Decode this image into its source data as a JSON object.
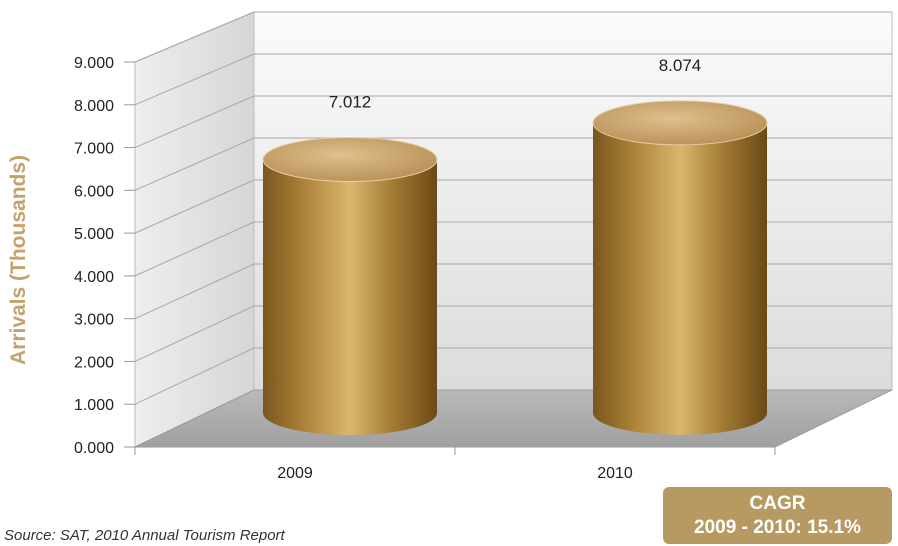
{
  "colors": {
    "accent": "#c4a26c",
    "bar_dark": "#7a561d",
    "bar_mid": "#b0863c",
    "bar_light": "#d9b66e",
    "bar_top": "#c8a571",
    "cagr_bg": "#b79a62"
  },
  "chart_data": {
    "type": "bar",
    "style": "3d-cylinder",
    "title": "",
    "xlabel": "",
    "ylabel": "Arrivals (Thousands)",
    "categories": [
      "2009",
      "2010"
    ],
    "values": [
      7.012,
      8.074
    ],
    "data_labels": [
      "7.012",
      "8.074"
    ],
    "yticks": [
      "0.000",
      "1.000",
      "2.000",
      "3.000",
      "4.000",
      "5.000",
      "6.000",
      "7.000",
      "8.000",
      "9.000"
    ],
    "ylim": [
      0,
      9
    ],
    "grid": true,
    "legend": "none"
  },
  "source": "Source: SAT, 2010 Annual Tourism Report",
  "cagr": {
    "title": "CAGR",
    "value": "2009 - 2010: 15.1%"
  }
}
